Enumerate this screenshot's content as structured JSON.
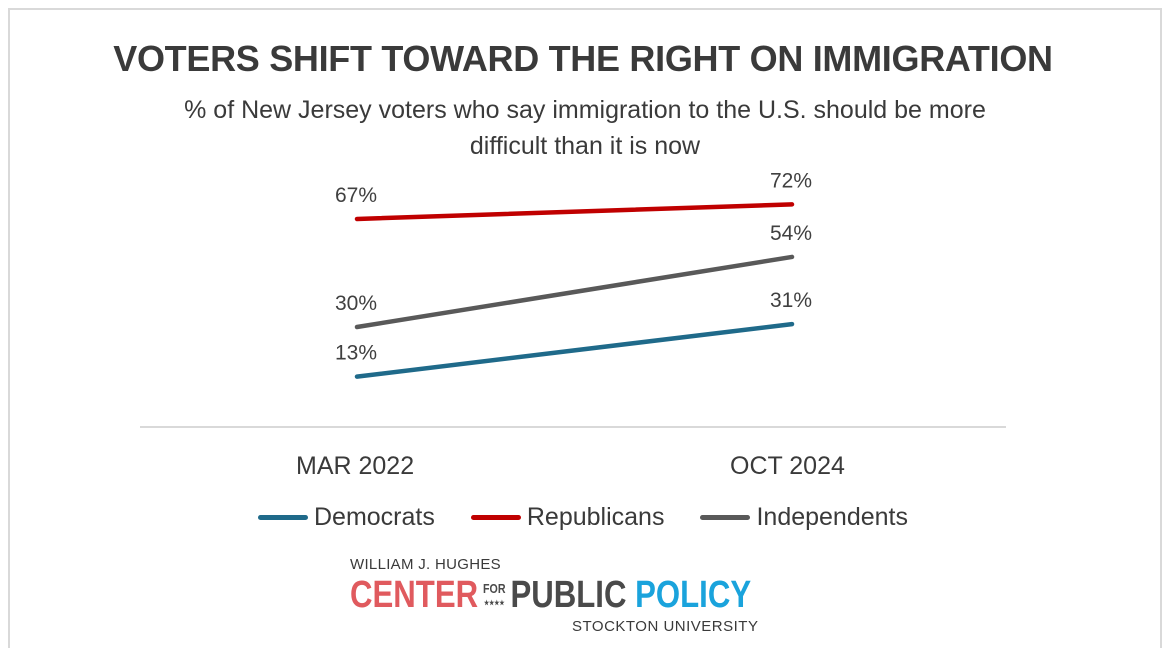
{
  "chart_data": {
    "type": "line",
    "title": "VOTERS SHIFT TOWARD THE RIGHT ON IMMIGRATION",
    "subtitle": "% of New Jersey voters who say immigration to the U.S. should be more difficult than it is now",
    "categories": [
      "MAR 2022",
      "OCT 2024"
    ],
    "ylim": [
      0,
      80
    ],
    "grid": false,
    "legend_position": "bottom",
    "series": [
      {
        "name": "Democrats",
        "values": [
          13,
          31
        ],
        "labels": [
          "13%",
          "31%"
        ],
        "color": "#1f6a8a"
      },
      {
        "name": "Republicans",
        "values": [
          67,
          72
        ],
        "labels": [
          "67%",
          "72%"
        ],
        "color": "#c00000"
      },
      {
        "name": "Independents",
        "values": [
          30,
          54
        ],
        "labels": [
          "30%",
          "54%"
        ],
        "color": "#595959"
      }
    ]
  },
  "logo": {
    "top": "WILLIAM J. HUGHES",
    "center": "CENTER",
    "for": "FOR",
    "stars": "★★★★",
    "public": "PUBLIC",
    "policy": "POLICY",
    "bottom": "STOCKTON UNIVERSITY"
  }
}
